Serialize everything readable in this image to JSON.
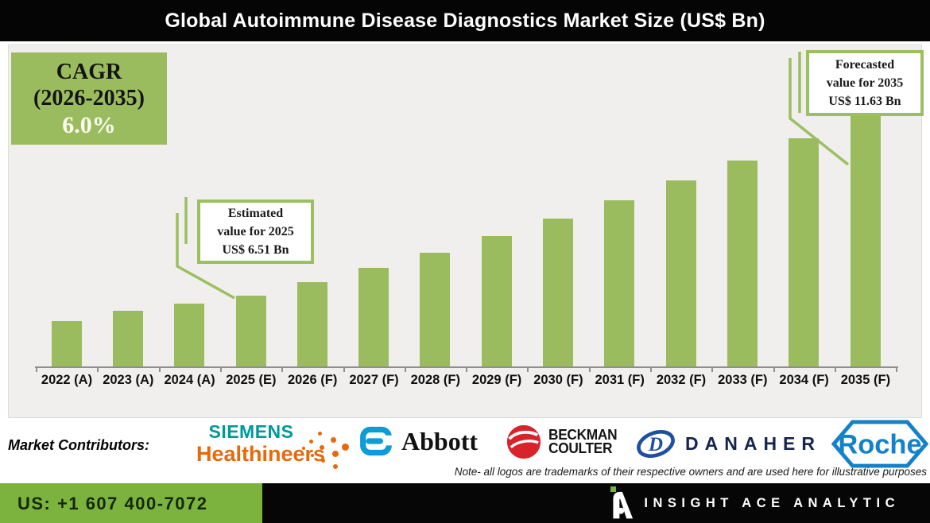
{
  "title": "Global Autoimmune Disease Diagnostics Market Size (US$ Bn)",
  "cagr_box": {
    "line1": "CAGR",
    "line2": "(2026-2035)",
    "line3": "6.0%"
  },
  "callouts": {
    "estimated": {
      "line1": "Estimated",
      "line2": "value for 2025",
      "line3": "US$ 6.51 Bn"
    },
    "forecasted": {
      "line1": "Forecasted",
      "line2": "value for 2035",
      "line3": "US$ 11.63 Bn"
    }
  },
  "chart_data": {
    "type": "bar",
    "title": "Global Autoimmune Disease Diagnostics Market Size (US$ Bn)",
    "unit": "US$ Bn",
    "categories": [
      "2022 (A)",
      "2023 (A)",
      "2024 (A)",
      "2025 (E)",
      "2026 (F)",
      "2027 (F)",
      "2028 (F)",
      "2029 (F)",
      "2030 (F)",
      "2031 (F)",
      "2032 (F)",
      "2033 (F)",
      "2034 (F)",
      "2035 (F)"
    ],
    "values": [
      5.8,
      6.08,
      6.28,
      6.51,
      6.9,
      7.31,
      7.75,
      8.22,
      8.71,
      9.23,
      9.79,
      10.37,
      10.99,
      11.63
    ],
    "xlabel": "",
    "ylabel": "",
    "ylim": [
      4.5,
      12.2
    ],
    "grid": false,
    "legend": "none",
    "bar_color": "#9BBC5E",
    "cagr_label": "CAGR (2026-2035) 6.0%",
    "annotations": [
      {
        "target": "2025 (E)",
        "value": 6.51,
        "text": "Estimated value for 2025 US$ 6.51 Bn"
      },
      {
        "target": "2035 (F)",
        "value": 11.63,
        "text": "Forecasted value for 2035 US$ 11.63 Bn"
      }
    ]
  },
  "contributors": {
    "label": "Market Contributors:",
    "siemens": {
      "line1": "SIEMENS",
      "line2": "Healthineers"
    },
    "abbott": {
      "text": "Abbott"
    },
    "beckman": {
      "line1": "BECKMAN",
      "line2": "COULTER"
    },
    "danaher": {
      "text": "DANAHER",
      "letter": "D"
    },
    "roche": {
      "text": "Roche"
    },
    "note": "Note- all logos are trademarks of their respective owners and are used here for illustrative purposes"
  },
  "footer": {
    "phone": "US: +1 607 400-7072",
    "brand": "INSIGHT ACE ANALYTIC"
  },
  "colors": {
    "bar_green": "#9BBC5E",
    "callout_border_green": "#9CBF62",
    "footer_green": "#7CB33E",
    "title_bar_black": "#050505",
    "panel_gray": "#F0EFED",
    "siemens_teal": "#009999",
    "healthineers_orange": "#E8680C",
    "abbott_blue": "#0E9BD8",
    "beckman_red": "#D8232A",
    "danaher_blue": "#1E4FA0",
    "roche_blue": "#1482C8"
  }
}
